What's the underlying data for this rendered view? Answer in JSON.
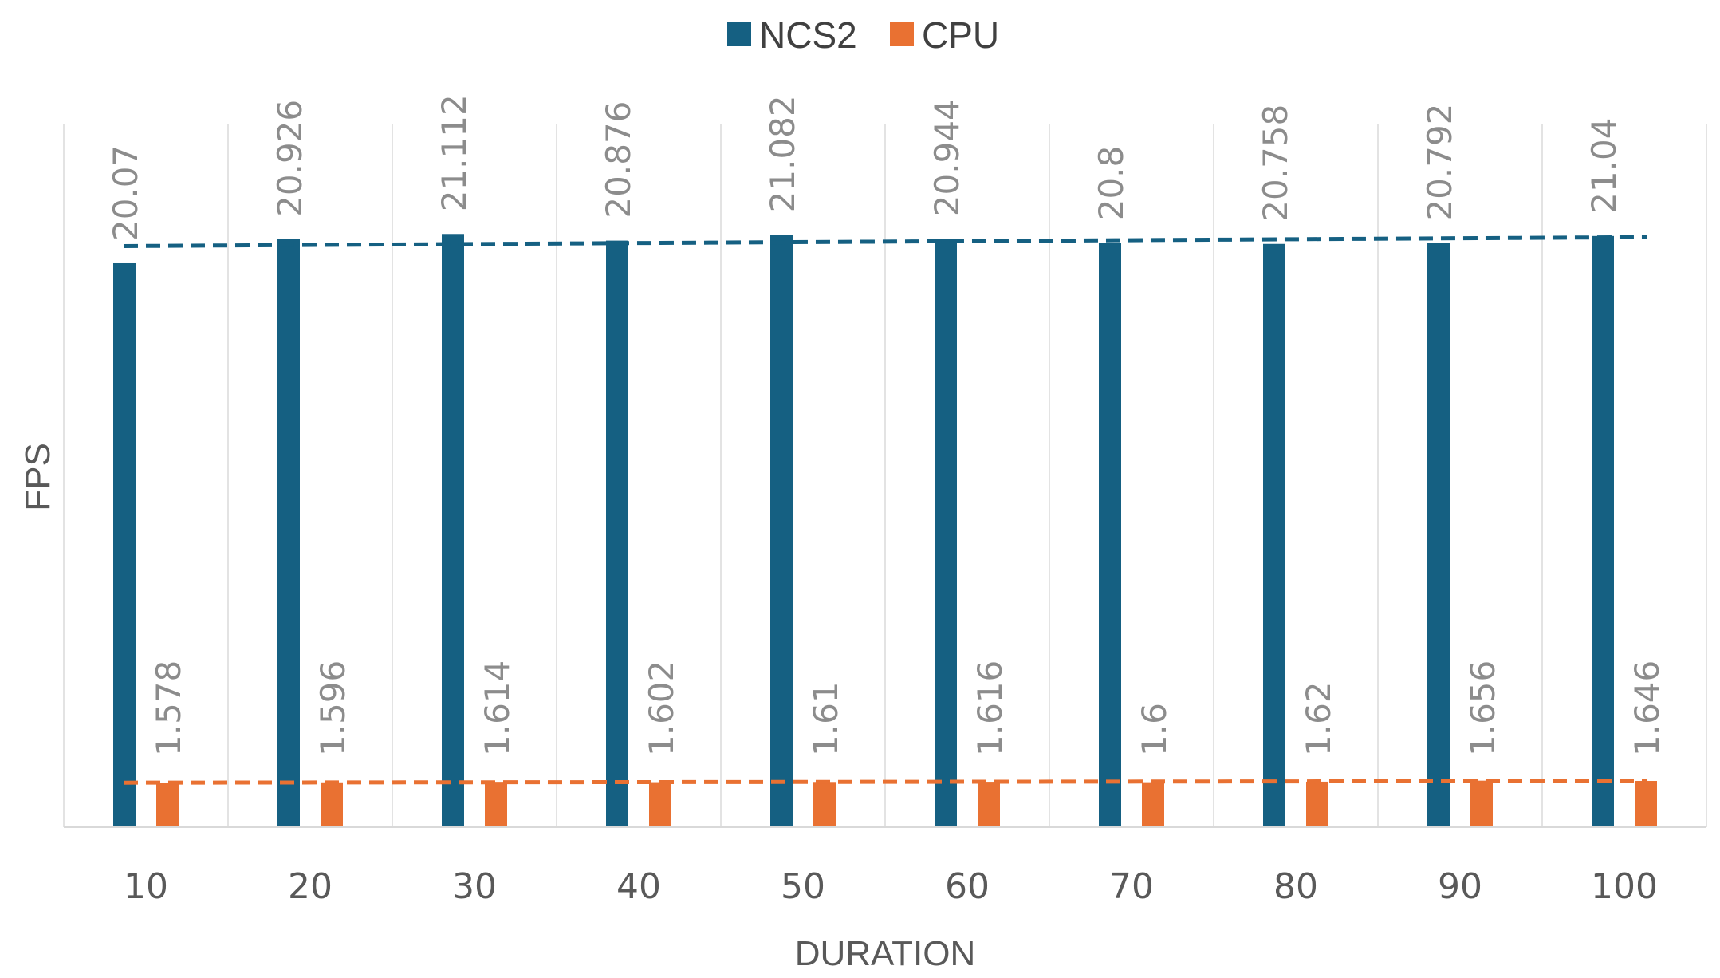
{
  "chart_data": {
    "type": "bar",
    "title": "",
    "xlabel": "DURATION",
    "ylabel": "FPS",
    "categories": [
      "10",
      "20",
      "30",
      "40",
      "50",
      "60",
      "70",
      "80",
      "90",
      "100"
    ],
    "series": [
      {
        "name": "NCS2",
        "color": "#156082",
        "values": [
          20.07,
          20.926,
          21.112,
          20.876,
          21.082,
          20.944,
          20.8,
          20.758,
          20.792,
          21.04
        ],
        "labels": [
          "20.07",
          "20.926",
          "21.112",
          "20.876",
          "21.082",
          "20.944",
          "20.8",
          "20.758",
          "20.792",
          "21.04"
        ]
      },
      {
        "name": "CPU",
        "color": "#E97132",
        "values": [
          1.578,
          1.596,
          1.614,
          1.602,
          1.61,
          1.616,
          1.6,
          1.62,
          1.656,
          1.646
        ],
        "labels": [
          "1.578",
          "1.596",
          "1.614",
          "1.602",
          "1.61",
          "1.616",
          "1.6",
          "1.62",
          "1.656",
          "1.646"
        ]
      }
    ],
    "trendlines": [
      {
        "series": "NCS2",
        "type": "linear",
        "style": "dashed"
      },
      {
        "series": "CPU",
        "type": "linear",
        "style": "dashed"
      }
    ],
    "ylim": [
      0,
      22
    ],
    "grid": {
      "vertical": true,
      "horizontal": false
    },
    "legend": "top-center",
    "data_labels": "rotated-vertical"
  }
}
